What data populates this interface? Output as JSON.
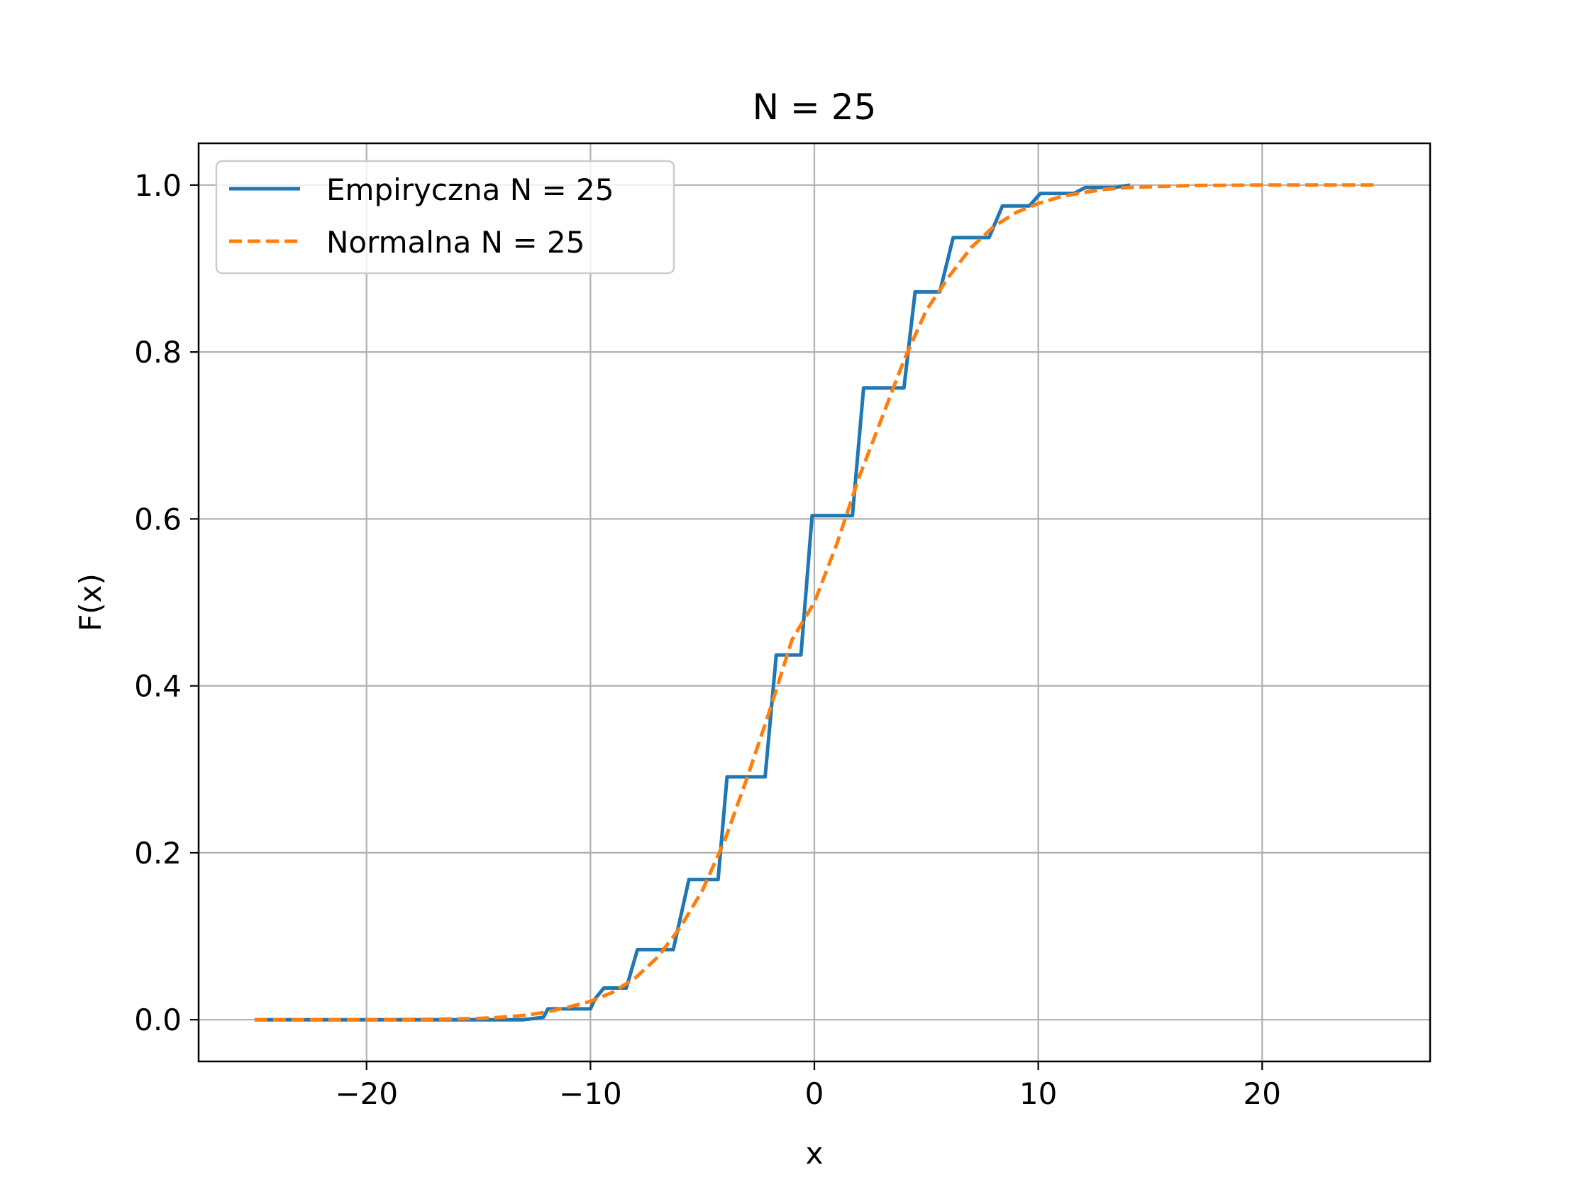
{
  "chart_data": {
    "type": "line",
    "title": "N = 25",
    "xlabel": "x",
    "ylabel": "F(x)",
    "xlim": [
      -27.5,
      27.5
    ],
    "ylim": [
      -0.05,
      1.05
    ],
    "xticks": [
      -20,
      -10,
      0,
      10,
      20
    ],
    "xtick_labels": [
      "−20",
      "−10",
      "0",
      "10",
      "20"
    ],
    "yticks": [
      0.0,
      0.2,
      0.4,
      0.6,
      0.8,
      1.0
    ],
    "ytick_labels": [
      "0.0",
      "0.2",
      "0.4",
      "0.6",
      "0.8",
      "1.0"
    ],
    "grid": true,
    "legend_position": "top-left",
    "series": [
      {
        "name": "Empiryczna N = 25",
        "color": "#1f77b4",
        "style": "solid",
        "x": [
          -25,
          -13.0,
          -12.1,
          -11.9,
          -10.0,
          -9.8,
          -9.4,
          -8.4,
          -7.9,
          -6.3,
          -5.6,
          -4.3,
          -3.9,
          -2.2,
          -1.7,
          -0.6,
          -0.1,
          1.7,
          2.2,
          4.0,
          4.5,
          5.6,
          6.2,
          7.8,
          8.4,
          9.6,
          10.1,
          11.6,
          12.1,
          13.4,
          14.1
        ],
        "y": [
          0,
          0,
          0.003,
          0.013,
          0.013,
          0.025,
          0.038,
          0.038,
          0.084,
          0.084,
          0.168,
          0.168,
          0.291,
          0.291,
          0.437,
          0.437,
          0.604,
          0.604,
          0.757,
          0.757,
          0.872,
          0.872,
          0.937,
          0.937,
          0.975,
          0.975,
          0.99,
          0.99,
          0.997,
          0.997,
          1.0
        ]
      },
      {
        "name": "Normalna N = 25",
        "color": "#ff7f0e",
        "style": "dashed",
        "x": [
          -25,
          -20,
          -17,
          -15,
          -14,
          -13,
          -12,
          -11,
          -10,
          -9,
          -8,
          -7,
          -6,
          -5,
          -4,
          -3,
          -2,
          -1,
          0,
          1,
          2,
          3,
          4,
          5,
          6,
          7,
          8,
          9,
          10,
          11,
          12,
          13,
          14,
          15,
          17,
          20,
          25
        ],
        "y": [
          0,
          0,
          0.0005,
          0.0015,
          0.003,
          0.005,
          0.009,
          0.015,
          0.022,
          0.033,
          0.05,
          0.075,
          0.11,
          0.155,
          0.215,
          0.29,
          0.37,
          0.455,
          0.5,
          0.57,
          0.65,
          0.72,
          0.79,
          0.85,
          0.89,
          0.925,
          0.95,
          0.967,
          0.978,
          0.986,
          0.991,
          0.995,
          0.997,
          0.998,
          0.9995,
          1.0,
          1.0
        ]
      }
    ]
  }
}
